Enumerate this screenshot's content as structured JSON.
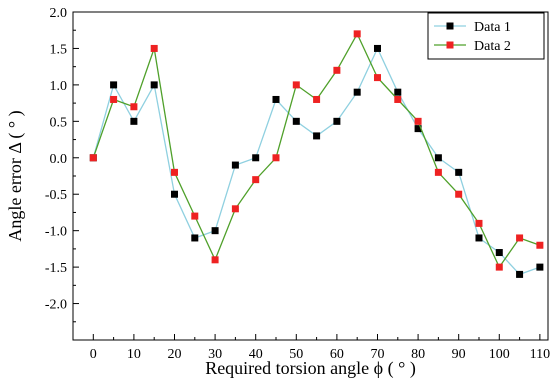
{
  "chart_data": {
    "type": "line",
    "xlabel": "Required torsion angle ϕ ( ° )",
    "ylabel": "Angle error Δ ( ° )",
    "xlim": [
      -5,
      112
    ],
    "ylim": [
      -2.5,
      2.0
    ],
    "x_ticks": [
      0,
      10,
      20,
      30,
      40,
      50,
      60,
      70,
      80,
      90,
      100,
      110
    ],
    "x_tick_labels": [
      "0",
      "10",
      "20",
      "30",
      "40",
      "50",
      "60",
      "70",
      "80",
      "90",
      "100",
      "110"
    ],
    "y_ticks": [
      -2.0,
      -1.5,
      -1.0,
      -0.5,
      0.0,
      0.5,
      1.0,
      1.5,
      2.0
    ],
    "y_tick_labels": [
      "-2.0",
      "-1.5",
      "-1.0",
      "-0.5",
      "0.0",
      "0.5",
      "1.0",
      "1.5",
      "2.0"
    ],
    "grid": false,
    "legend_position": "top-right",
    "x": [
      0,
      5,
      10,
      15,
      20,
      25,
      30,
      35,
      40,
      45,
      50,
      55,
      60,
      65,
      70,
      75,
      80,
      85,
      90,
      95,
      100,
      105,
      110
    ],
    "series": [
      {
        "name": "Data 1",
        "line_color": "#8fd0e0",
        "marker_color": "#000000",
        "marker": "square",
        "values": [
          0,
          1.0,
          0.5,
          1.0,
          -0.5,
          -1.1,
          -1.0,
          -0.1,
          0.0,
          0.8,
          0.5,
          0.3,
          0.5,
          0.9,
          1.5,
          0.9,
          0.4,
          0.0,
          -0.2,
          -1.1,
          -1.3,
          -1.6,
          -1.5
        ]
      },
      {
        "name": "Data 2",
        "line_color": "#4fa02a",
        "marker_color": "#ee2222",
        "marker": "square",
        "values": [
          0,
          0.8,
          0.7,
          1.5,
          -0.2,
          -0.8,
          -1.4,
          -0.7,
          -0.3,
          0.0,
          1.0,
          0.8,
          1.2,
          1.7,
          1.1,
          0.8,
          0.5,
          -0.2,
          -0.5,
          -0.9,
          -1.5,
          -1.1,
          -1.2
        ]
      }
    ]
  }
}
